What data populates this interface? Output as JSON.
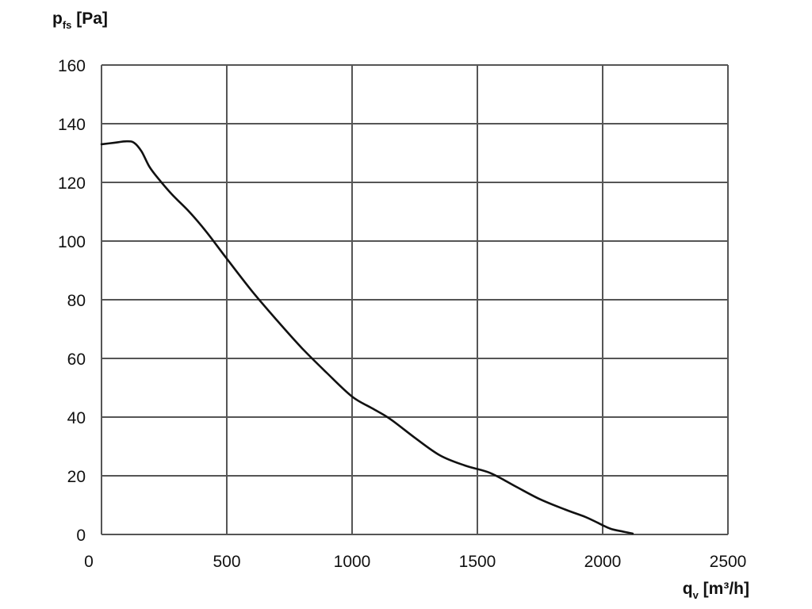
{
  "chart_data": {
    "type": "line",
    "x_axis": {
      "label_main": "q",
      "label_sub": "v",
      "label_unit": " [m³/h]",
      "range": [
        0,
        2500
      ],
      "ticks": [
        0,
        500,
        1000,
        1500,
        2000,
        2500
      ],
      "tick_labels": [
        "0",
        "500",
        "1000",
        "1500",
        "2000",
        "2500"
      ]
    },
    "y_axis": {
      "label_main": "p",
      "label_sub": "fs",
      "label_unit": " [Pa]",
      "range": [
        0,
        160
      ],
      "ticks": [
        0,
        20,
        40,
        60,
        80,
        100,
        120,
        140,
        160
      ],
      "tick_labels": [
        "0",
        "20",
        "40",
        "60",
        "80",
        "100",
        "120",
        "140",
        "160"
      ]
    },
    "grid": true,
    "series": [
      {
        "color": "#111111",
        "x": [
          0,
          50,
          100,
          130,
          160,
          190,
          220,
          280,
          350,
          420,
          500,
          600,
          700,
          800,
          900,
          1000,
          1080,
          1150,
          1250,
          1350,
          1450,
          1550,
          1650,
          1750,
          1850,
          1930,
          1980,
          2030,
          2080,
          2120
        ],
        "y": [
          133,
          133.5,
          134,
          133.5,
          130.5,
          125.5,
          122,
          116,
          110,
          103,
          94,
          83,
          73,
          63.5,
          55,
          47,
          43,
          39.5,
          33,
          27,
          23.5,
          21,
          16.5,
          12,
          8.5,
          6,
          4,
          2,
          1,
          0.3
        ]
      }
    ]
  }
}
